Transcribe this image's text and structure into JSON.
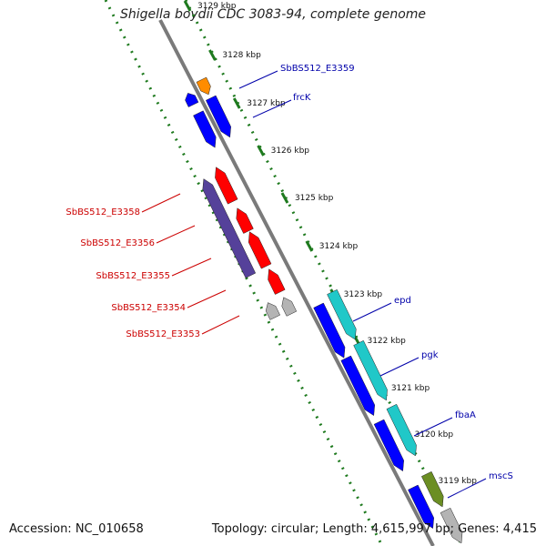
{
  "title": "Shigella boydii CDC 3083-94, complete genome",
  "accession": "Accession: NC_010658",
  "topology": "Topology: circular; Length: 4,615,997 bp; Genes: 4,415",
  "colors": {
    "forward_gene": "#0000ff",
    "reverse_gene": "#ff0000",
    "rna_orange": "#ff8c00",
    "cyan_gene": "#20c8c8",
    "purple_gene": "#55419a",
    "pseudo_gene": "#b4b4b4",
    "olive_gene": "#6b8e23",
    "backbone": "#808080",
    "dots": "#1e7a1e",
    "label_right": "#0000aa",
    "label_left": "#cc0000"
  },
  "ticks": [
    {
      "label": "3129 kbp"
    },
    {
      "label": "3128 kbp"
    },
    {
      "label": "3127 kbp"
    },
    {
      "label": "3126 kbp"
    },
    {
      "label": "3125 kbp"
    },
    {
      "label": "3124 kbp"
    },
    {
      "label": "3123 kbp"
    },
    {
      "label": "3122 kbp"
    },
    {
      "label": "3121 kbp"
    },
    {
      "label": "3120 kbp"
    },
    {
      "label": "3119 kbp"
    }
  ],
  "genes_right": [
    {
      "label": "SbBS512_E3359"
    },
    {
      "label": "frcK"
    },
    {
      "label": "epd"
    },
    {
      "label": "pgk"
    },
    {
      "label": "fbaA"
    },
    {
      "label": "mscS"
    }
  ],
  "genes_left": [
    {
      "label": "SbBS512_E3358"
    },
    {
      "label": "SbBS512_E3356"
    },
    {
      "label": "SbBS512_E3355"
    },
    {
      "label": "SbBS512_E3354"
    },
    {
      "label": "SbBS512_E3353"
    }
  ]
}
